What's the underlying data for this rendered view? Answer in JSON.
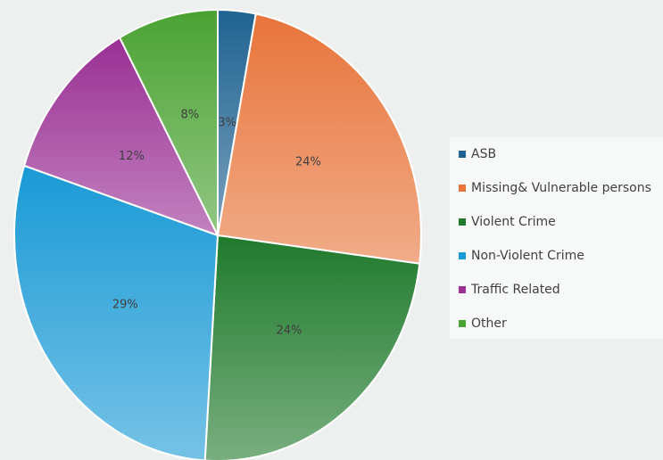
{
  "chart_data": {
    "type": "pie",
    "categories": [
      "ASB",
      "Missing& Vulnerable persons",
      "Violent Crime",
      "Non-Violent Crime",
      "Traffic Related",
      "Other"
    ],
    "values": [
      3,
      24,
      24,
      29,
      12,
      8
    ],
    "value_labels": [
      "3%",
      "24%",
      "24%",
      "29%",
      "12%",
      "8%"
    ],
    "colors": [
      "#1f6391",
      "#e8743a",
      "#1f7a2c",
      "#1a9ad6",
      "#9a2f94",
      "#4aa232"
    ],
    "legend": "right"
  }
}
